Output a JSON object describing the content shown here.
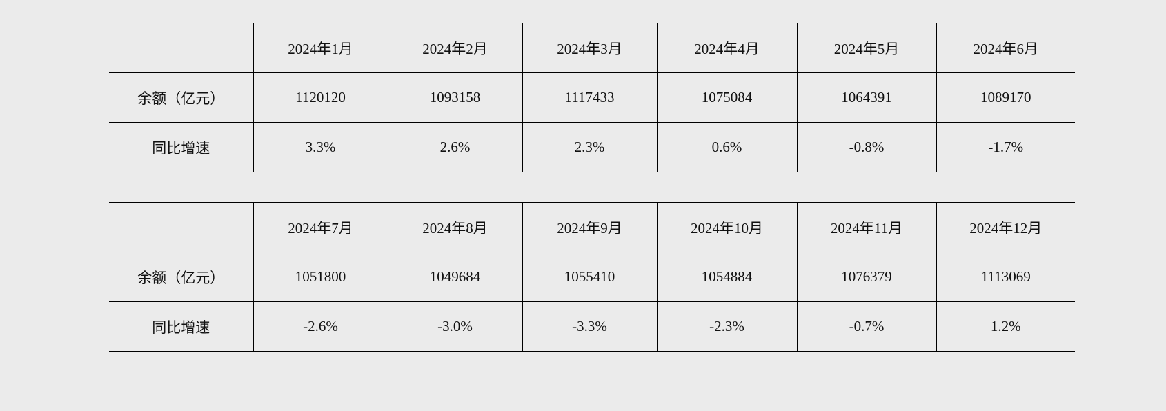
{
  "tables": [
    {
      "header": [
        "2024年1月",
        "2024年2月",
        "2024年3月",
        "2024年4月",
        "2024年5月",
        "2024年6月"
      ],
      "rows": [
        {
          "label": "余额（亿元）",
          "values": [
            "1120120",
            "1093158",
            "1117433",
            "1075084",
            "1064391",
            "1089170"
          ]
        },
        {
          "label": "同比增速",
          "values": [
            "3.3%",
            "2.6%",
            "2.3%",
            "0.6%",
            "-0.8%",
            "-1.7%"
          ]
        }
      ]
    },
    {
      "header": [
        "2024年7月",
        "2024年8月",
        "2024年9月",
        "2024年10月",
        "2024年11月",
        "2024年12月"
      ],
      "rows": [
        {
          "label": "余额（亿元）",
          "values": [
            "1051800",
            "1049684",
            "1055410",
            "1054884",
            "1076379",
            "1113069"
          ]
        },
        {
          "label": "同比增速",
          "values": [
            "-2.6%",
            "-3.0%",
            "-3.3%",
            "-2.3%",
            "-0.7%",
            "1.2%"
          ]
        }
      ]
    }
  ]
}
